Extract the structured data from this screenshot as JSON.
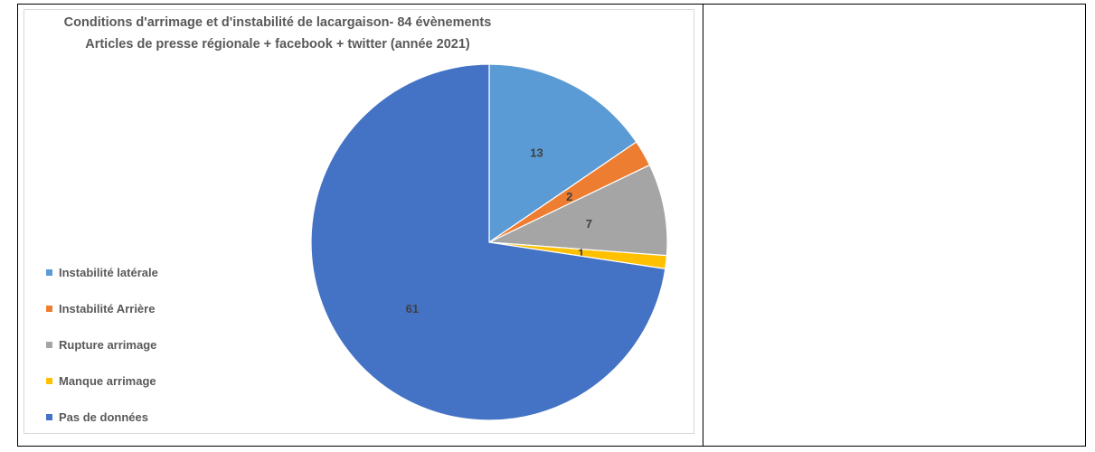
{
  "chart_data": {
    "type": "pie",
    "title": "Conditions d'arrimage et d'instabilité de lacargaison- 84 évènements",
    "subtitle": "Articles de presse régionale + facebook + twitter (année 2021)",
    "categories": [
      "Instabilité latérale",
      "Instabilité Arrière",
      "Rupture arrimage",
      "Manque arrimage",
      "Pas de données"
    ],
    "values": [
      13,
      2,
      7,
      1,
      61
    ],
    "data_labels": [
      "13",
      "2",
      "7",
      "1",
      "61"
    ],
    "colors": [
      "#5b9bd5",
      "#ed7d31",
      "#a5a5a5",
      "#ffc000",
      "#4472c4"
    ],
    "start_angle": "12 o'clock",
    "direction": "clockwise",
    "legend_position": "left"
  }
}
